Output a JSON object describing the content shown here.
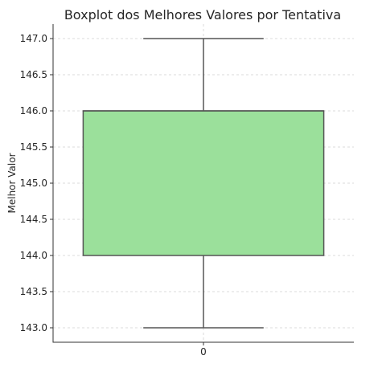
{
  "chart_data": {
    "type": "boxplot",
    "title": "Boxplot dos Melhores Valores por Tentativa",
    "xlabel": "",
    "ylabel": "Melhor Valor",
    "categories": [
      "0"
    ],
    "boxes": [
      {
        "category": "0",
        "whisker_low": 143.0,
        "q1": 144.0,
        "median": 146.0,
        "q3": 146.0,
        "whisker_high": 147.0
      }
    ],
    "ylim": [
      142.8,
      147.2
    ],
    "yticks": [
      "143.0",
      "143.5",
      "144.0",
      "144.5",
      "145.0",
      "145.5",
      "146.0",
      "146.5",
      "147.0"
    ],
    "grid": true,
    "box_color": "#9be09b",
    "edge_color": "#555555"
  }
}
